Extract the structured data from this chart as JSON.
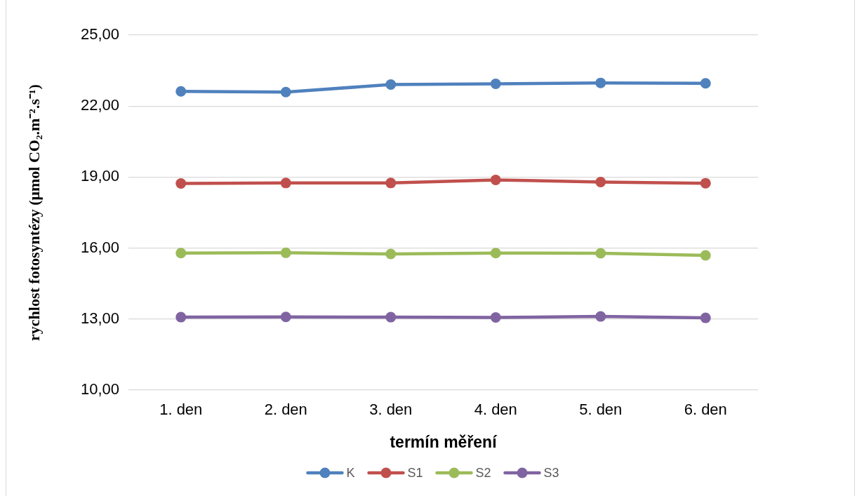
{
  "chart_data": {
    "type": "line",
    "categories": [
      "1. den",
      "2. den",
      "3. den",
      "4. den",
      "5. den",
      "6. den"
    ],
    "series": [
      {
        "name": "K",
        "color": "#4f81bd",
        "values": [
          22.62,
          22.59,
          22.91,
          22.94,
          22.98,
          22.96
        ]
      },
      {
        "name": "S1",
        "color": "#c0504d",
        "values": [
          18.73,
          18.75,
          18.75,
          18.88,
          18.79,
          18.74
        ]
      },
      {
        "name": "S2",
        "color": "#9bbb59",
        "values": [
          15.79,
          15.8,
          15.75,
          15.79,
          15.78,
          15.69
        ]
      },
      {
        "name": "S3",
        "color": "#8064a2",
        "values": [
          13.08,
          13.09,
          13.08,
          13.07,
          13.11,
          13.05
        ]
      }
    ],
    "xlabel": "termín měření",
    "ylabel": "rychlost fotosyntézy (μmol CO₂.m⁻².s⁻¹)",
    "ylim": [
      10,
      25
    ],
    "yticks": [
      {
        "value": 10,
        "label": "10,00"
      },
      {
        "value": 13,
        "label": "13,00"
      },
      {
        "value": 16,
        "label": "16,00"
      },
      {
        "value": 19,
        "label": "19,00"
      },
      {
        "value": 22,
        "label": "22,00"
      },
      {
        "value": 25,
        "label": "25,00"
      }
    ],
    "grid": "y",
    "legend": "bottom",
    "marker": "circle",
    "line_style": "solid"
  }
}
